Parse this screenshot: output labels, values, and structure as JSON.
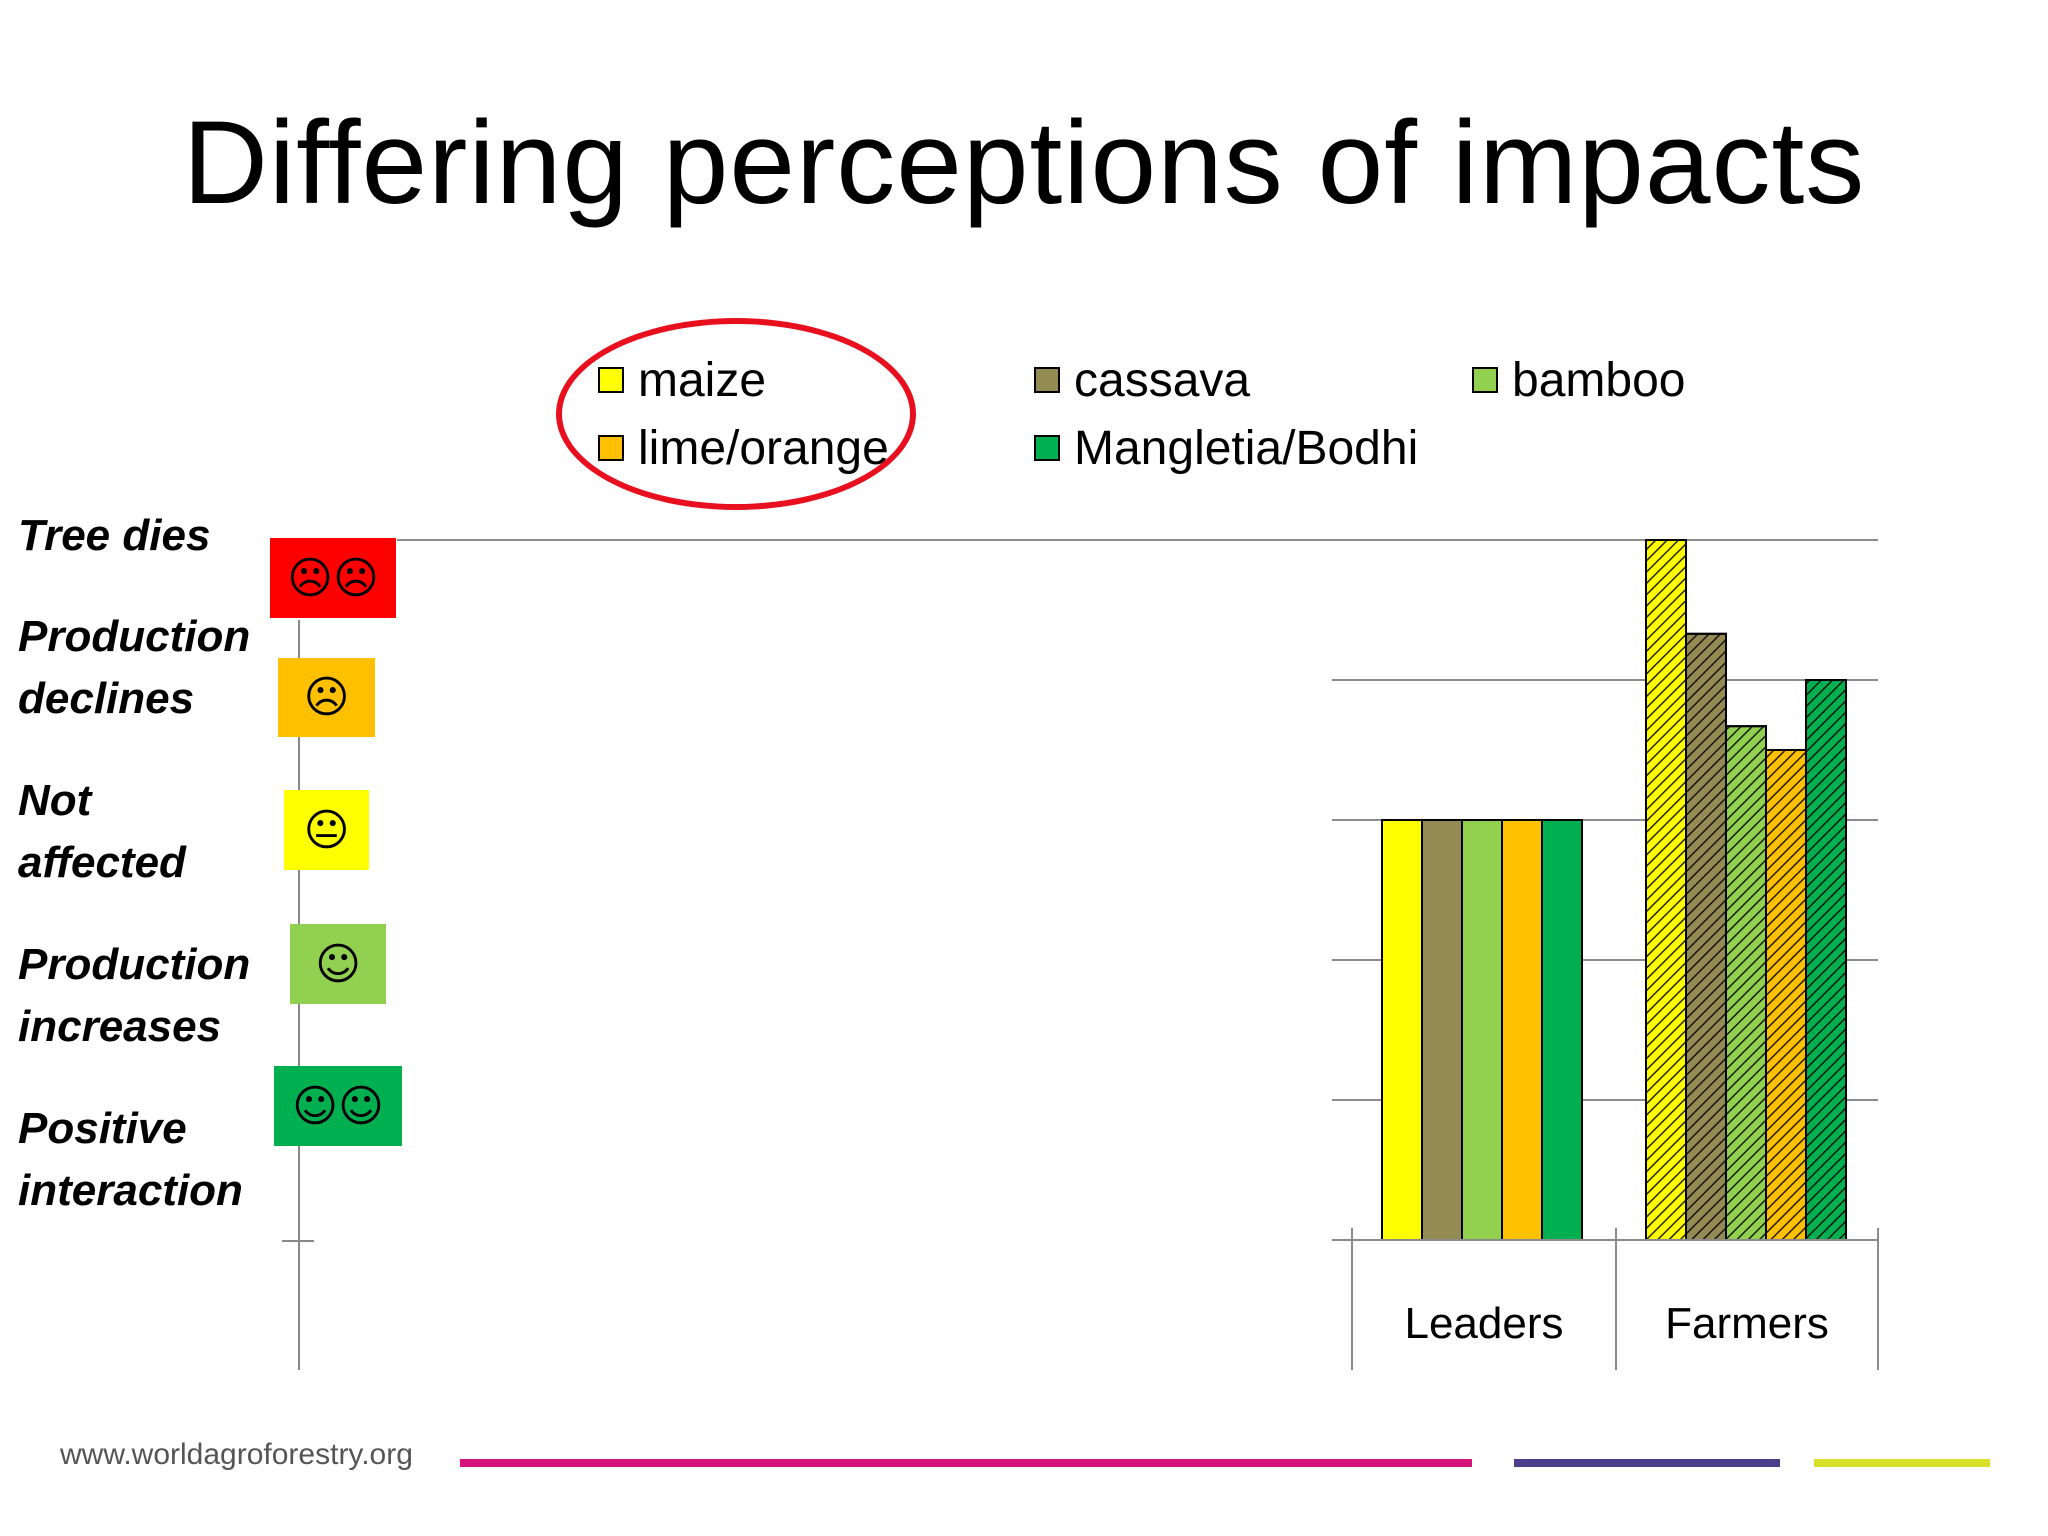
{
  "title": "Differing perceptions of impacts",
  "legend": [
    {
      "label": "maize",
      "color": "#ffff00"
    },
    {
      "label": "cassava",
      "color": "#948a54"
    },
    {
      "label": "bamboo",
      "color": "#92d050"
    },
    {
      "label": "lime/orange",
      "color": "#ffc000"
    },
    {
      "label": "Mangletia/Bodhi",
      "color": "#00b050"
    }
  ],
  "scale": [
    {
      "label": "Tree dies",
      "symbol": "☹☹",
      "color": "#ff0000"
    },
    {
      "label": "Production declines",
      "symbol": "☹",
      "color": "#ffc000"
    },
    {
      "label": "Not affected",
      "symbol": "😐",
      "color": "#ffff00"
    },
    {
      "label": "Production increases",
      "symbol": "☺",
      "color": "#92d050"
    },
    {
      "label": "Positive interaction",
      "symbol": "☺☺",
      "color": "#00b050"
    }
  ],
  "chart_data": {
    "type": "bar",
    "categories": [
      "Leaders",
      "Farmers"
    ],
    "series": [
      {
        "name": "maize",
        "values": [
          3,
          5
        ]
      },
      {
        "name": "cassava",
        "values": [
          3,
          4.33
        ]
      },
      {
        "name": "bamboo",
        "values": [
          3,
          3.67
        ]
      },
      {
        "name": "lime/orange",
        "values": [
          3,
          3.5
        ]
      },
      {
        "name": "Mangletia/Bodhi",
        "values": [
          3,
          4
        ]
      }
    ],
    "ylim": [
      0,
      5
    ],
    "grid": true,
    "patterned_series_category": "Farmers",
    "legend_placement": "top"
  },
  "footer": {
    "url": "www.worldagroforestry.org",
    "bar_colors": [
      "#d4147a",
      "#4b3f8c",
      "#d8df2a"
    ]
  },
  "annotation": {
    "ring_color": "#e8101e",
    "ring_target": "maize, lime/orange"
  }
}
